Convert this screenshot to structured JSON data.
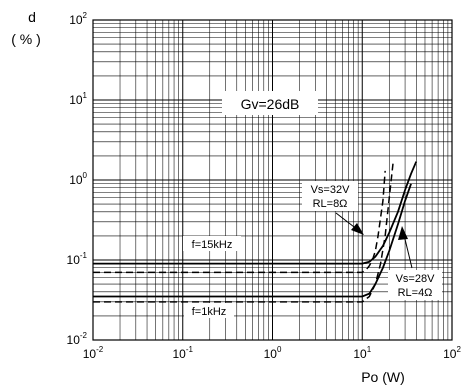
{
  "chart_data": {
    "type": "line",
    "title": "",
    "xlabel": "Po (W)",
    "ylabel_line1": "d",
    "ylabel_line2": "( % )",
    "x_scale": "log",
    "y_scale": "log",
    "xlim": [
      0.01,
      100
    ],
    "ylim": [
      0.01,
      100
    ],
    "grid": true,
    "x_ticks": [
      {
        "value": 0.01,
        "base": "10",
        "exp": "-2"
      },
      {
        "value": 0.1,
        "base": "10",
        "exp": "-1"
      },
      {
        "value": 1,
        "base": "10",
        "exp": "0"
      },
      {
        "value": 10,
        "base": "10",
        "exp": "1"
      },
      {
        "value": 100,
        "base": "10",
        "exp": "2"
      }
    ],
    "y_ticks": [
      {
        "value": 0.01,
        "base": "10",
        "exp": "-2"
      },
      {
        "value": 0.1,
        "base": "10",
        "exp": "-1"
      },
      {
        "value": 1,
        "base": "10",
        "exp": "0"
      },
      {
        "value": 10,
        "base": "10",
        "exp": "1"
      },
      {
        "value": 100,
        "base": "10",
        "exp": "2"
      }
    ],
    "annotations": {
      "gain": "Gv=26dB",
      "f_high": "f=15kHz",
      "f_low": "f=1kHz",
      "vs32_line1": "Vs=32V",
      "vs32_line2": "RL=8Ω",
      "vs28_line1": "Vs=28V",
      "vs28_line2": "RL=4Ω"
    },
    "series": [
      {
        "style": "solid",
        "x": [
          0.01,
          1,
          10,
          12,
          14,
          17,
          20,
          25,
          30,
          35,
          40
        ],
        "y": [
          0.09,
          0.09,
          0.09,
          0.095,
          0.11,
          0.15,
          0.22,
          0.4,
          0.75,
          1.2,
          1.7
        ]
      },
      {
        "style": "solid",
        "x": [
          0.01,
          1,
          10,
          12,
          14,
          17,
          20,
          25,
          30,
          35
        ],
        "y": [
          0.035,
          0.035,
          0.035,
          0.038,
          0.05,
          0.08,
          0.13,
          0.28,
          0.55,
          0.9
        ]
      },
      {
        "style": "dashed",
        "x": [
          0.01,
          1,
          10,
          11,
          12,
          13,
          14,
          15,
          17,
          18
        ],
        "y": [
          0.07,
          0.07,
          0.07,
          0.075,
          0.085,
          0.1,
          0.13,
          0.2,
          0.55,
          1.3
        ]
      },
      {
        "style": "dashed",
        "x": [
          0.01,
          1,
          10,
          12,
          14,
          16,
          18,
          20,
          22
        ],
        "y": [
          0.03,
          0.03,
          0.03,
          0.035,
          0.05,
          0.09,
          0.2,
          0.6,
          1.6
        ]
      }
    ]
  }
}
